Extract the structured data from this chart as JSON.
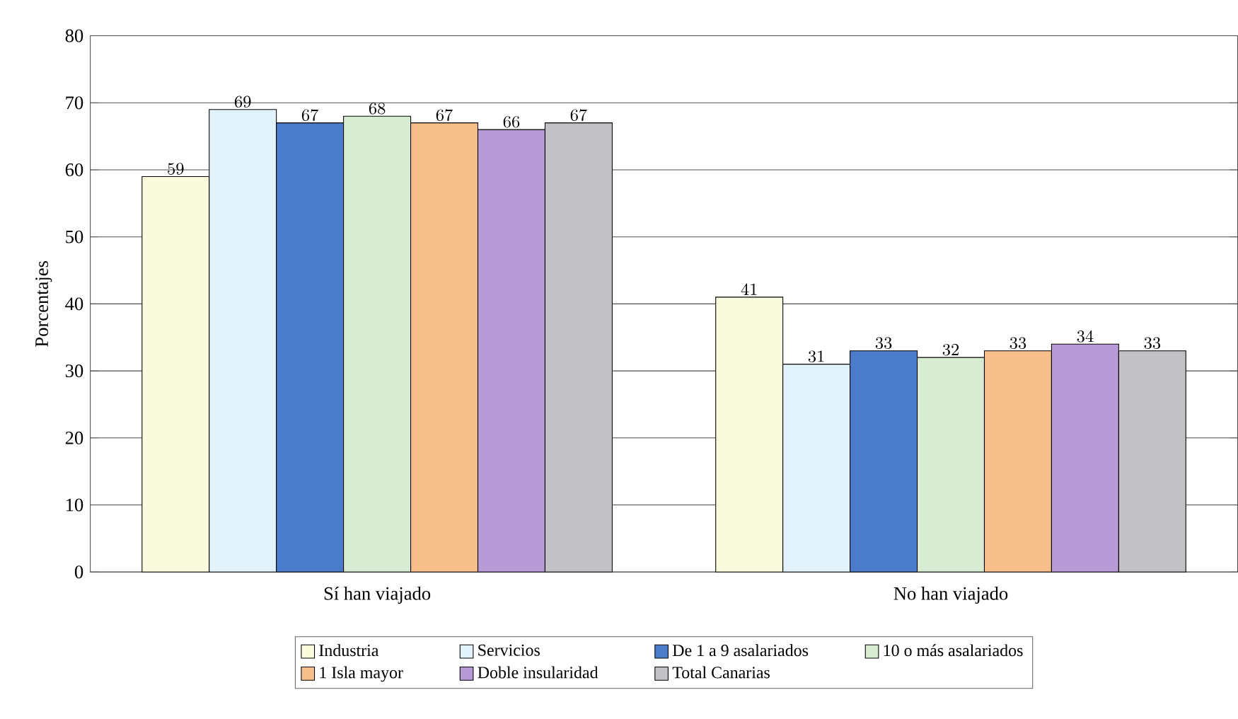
{
  "chart_data": {
    "type": "bar",
    "ylabel": "Porcentajes",
    "categories": [
      "Sí han viajado",
      "No han viajado"
    ],
    "series": [
      {
        "name": "Industria",
        "color": "#fafadc",
        "values": [
          59,
          41
        ]
      },
      {
        "name": "Servicios",
        "color": "#e2f2fa",
        "values": [
          69,
          31
        ]
      },
      {
        "name": "De 1 a 9 asalariados",
        "color": "#4a7cc9",
        "values": [
          67,
          33
        ]
      },
      {
        "name": "10 o más asalariados",
        "color": "#d8ecd4",
        "values": [
          68,
          32
        ]
      },
      {
        "name": "1 Isla mayor",
        "color": "#f7bf8c",
        "values": [
          67,
          33
        ]
      },
      {
        "name": "Doble insularidad",
        "color": "#b89ad6",
        "values": [
          66,
          34
        ]
      },
      {
        "name": "Total Canarias",
        "color": "#c2c2c6",
        "values": [
          67,
          33
        ]
      }
    ],
    "ylim": [
      0,
      80
    ],
    "yticks": [
      0,
      10,
      20,
      30,
      40,
      50,
      60,
      70,
      80
    ],
    "grid": "y",
    "legend": "bottom",
    "data_labels": true
  }
}
